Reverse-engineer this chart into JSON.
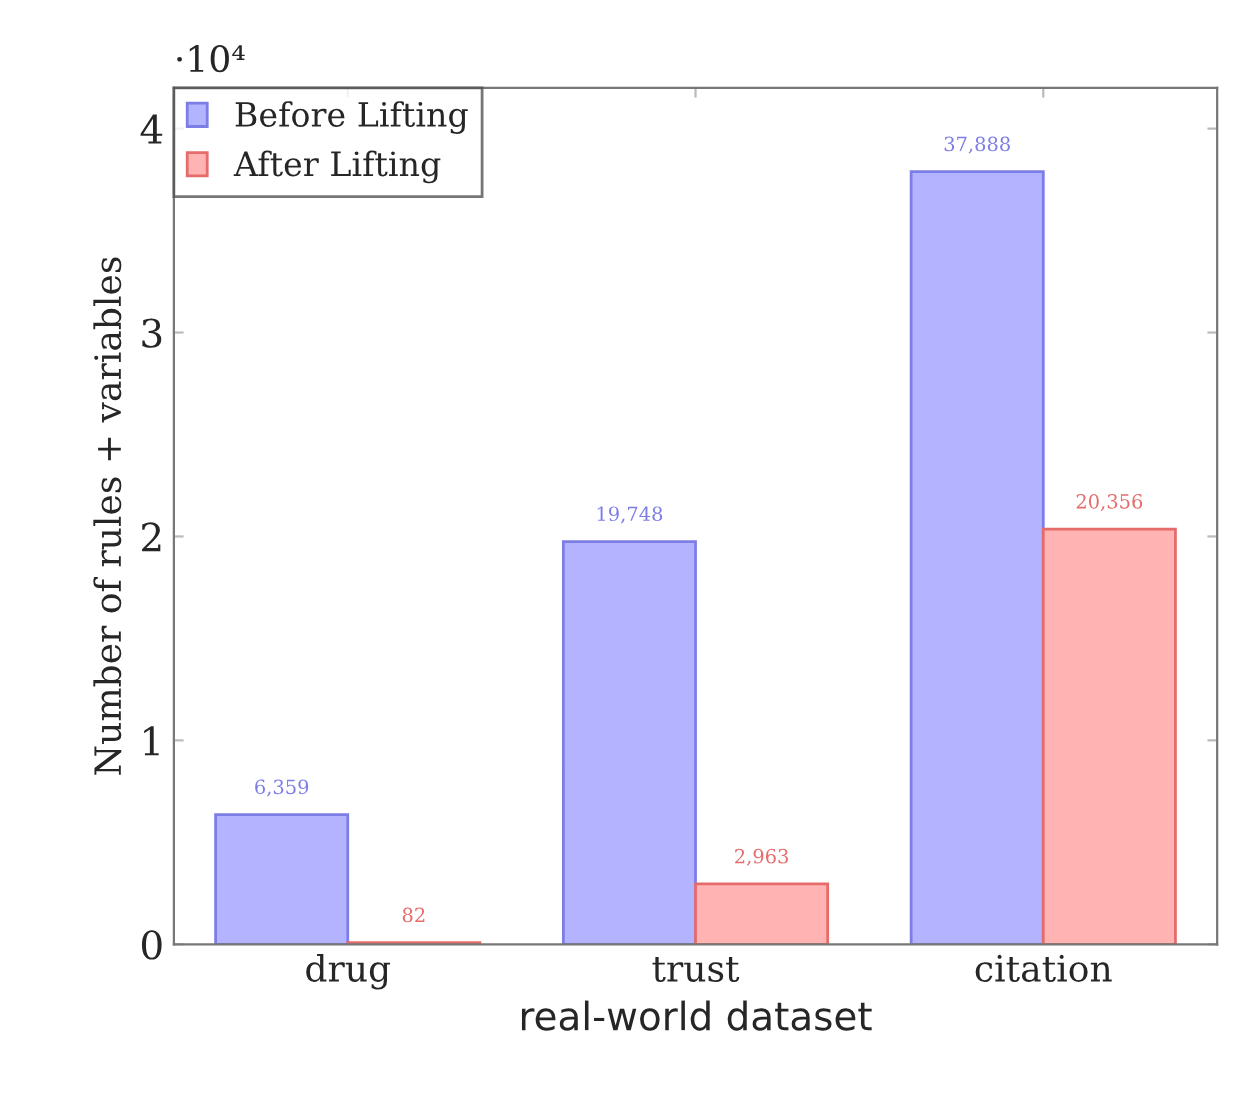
{
  "chart_data": {
    "type": "bar",
    "xlabel": "real-world dataset",
    "ylabel": "Number of rules + variables",
    "categories": [
      "drug",
      "trust",
      "citation"
    ],
    "series": [
      {
        "name": "Before Lifting",
        "color": "#b3b3ff",
        "values": [
          0.636,
          1.975,
          3.789
        ]
      },
      {
        "name": "After Lifting",
        "color": "#ffb3b3",
        "values": [
          0.008,
          0.296,
          2.036
        ]
      }
    ],
    "ylim": [
      0,
      4.2
    ],
    "yticks": [
      0,
      1,
      2,
      3,
      4
    ],
    "annotations": [
      "·10⁴",
      "6,359",
      "19,748",
      "37,888",
      "82",
      "2,963",
      "20,356"
    ],
    "legend": "top left",
    "grid": false
  }
}
